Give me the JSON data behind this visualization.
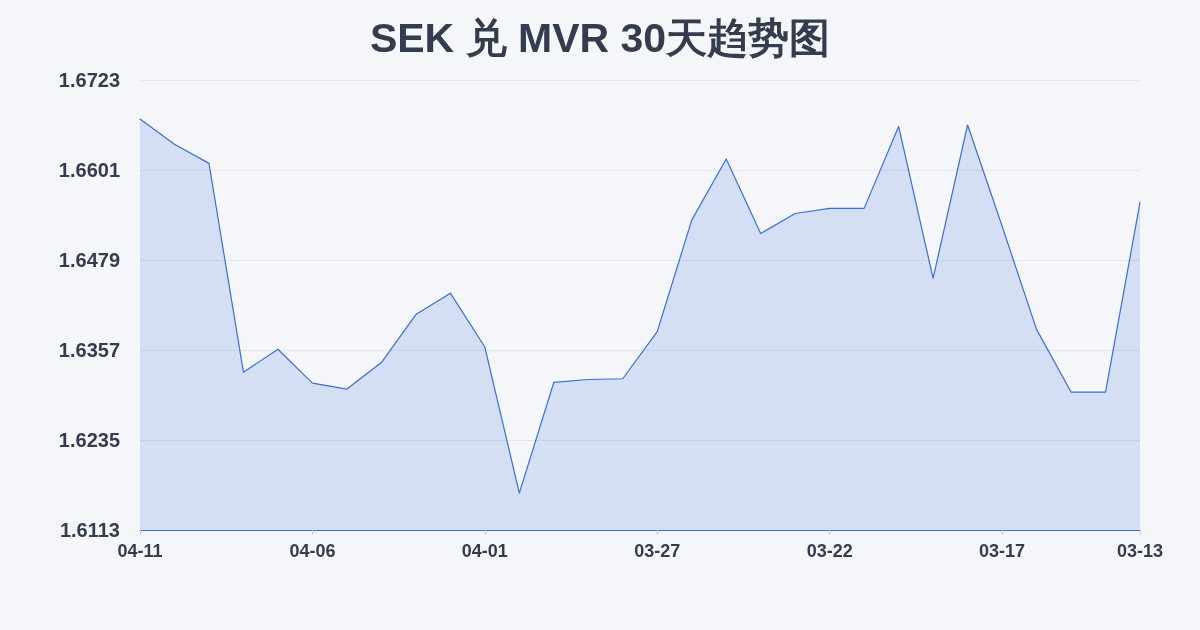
{
  "chart_data": {
    "type": "area",
    "title": "SEK 兑 MVR 30天趋势图",
    "categories": [
      "04-11",
      null,
      null,
      null,
      null,
      "04-06",
      null,
      null,
      null,
      null,
      "04-01",
      null,
      null,
      null,
      null,
      "03-27",
      null,
      null,
      null,
      null,
      "03-22",
      null,
      null,
      null,
      null,
      "03-17",
      null,
      null,
      null,
      "03-13"
    ],
    "values": [
      1.667,
      1.6636,
      1.661,
      1.6327,
      1.6358,
      1.6312,
      1.6304,
      1.634,
      1.6405,
      1.6434,
      1.6361,
      1.6163,
      1.6313,
      1.6317,
      1.6318,
      1.6382,
      1.6533,
      1.6616,
      1.6515,
      1.6542,
      1.6549,
      1.6549,
      1.666,
      1.6454,
      1.6662,
      1.6525,
      1.6385,
      1.63,
      1.63,
      1.6557
    ],
    "color": "#3a6fd8",
    "ylim": [
      1.6113,
      1.6723
    ],
    "yticks": [
      1.6113,
      1.6235,
      1.6357,
      1.6479,
      1.6601,
      1.6723
    ],
    "grid": "y",
    "marker": "none",
    "line_style": "solid"
  }
}
